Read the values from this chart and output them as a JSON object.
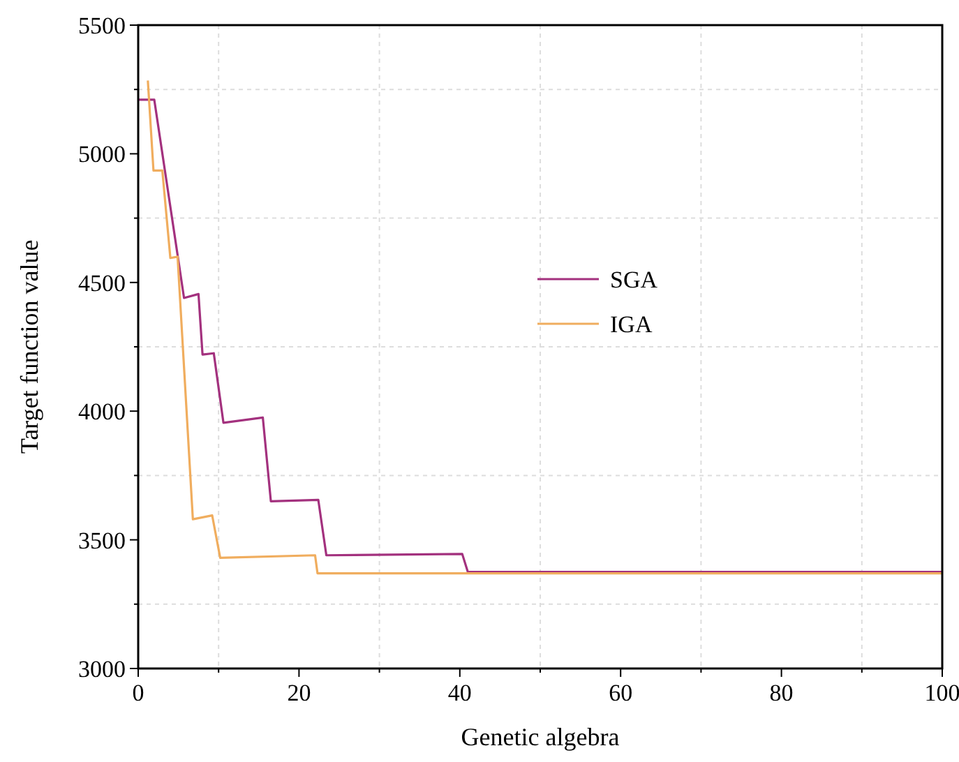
{
  "chart_data": {
    "type": "line",
    "xlabel": "Genetic algebra",
    "ylabel": "Target function value",
    "xlim": [
      0,
      100
    ],
    "ylim": [
      3000,
      5500
    ],
    "xticks": [
      0,
      {
        "value": 10,
        "label": null
      },
      20,
      {
        "value": 30,
        "label": null
      },
      40,
      {
        "value": 50,
        "label": null
      },
      60,
      {
        "value": 70,
        "label": null
      },
      80,
      {
        "value": 90,
        "label": null
      },
      100
    ],
    "yticks": [
      3000,
      {
        "value": 3250,
        "label": null
      },
      3500,
      {
        "value": 3750,
        "label": null
      },
      4000,
      {
        "value": 4250,
        "label": null
      },
      4500,
      {
        "value": 4750,
        "label": null
      },
      5000,
      {
        "value": 5250,
        "label": null
      },
      5500
    ],
    "grid": true,
    "legend": "right",
    "marker": "none",
    "line_style": "solid",
    "series": [
      {
        "name": "SGA",
        "color": "#a3317e",
        "x": [
          0,
          2,
          5.7,
          7.5,
          8,
          9.4,
          10.6,
          15.5,
          16.5,
          22.4,
          23.4,
          40.3,
          41,
          100
        ],
        "values": [
          5210,
          5210,
          4440,
          4455,
          4220,
          4225,
          3955,
          3975,
          3650,
          3655,
          3440,
          3445,
          3375,
          3375
        ]
      },
      {
        "name": "IGA",
        "color": "#f0ad5e",
        "x": [
          1.2,
          1.9,
          3,
          4,
          4.9,
          6.8,
          9.2,
          10.2,
          22,
          22.3,
          100
        ],
        "values": [
          5285,
          4935,
          4935,
          4595,
          4600,
          3580,
          3595,
          3430,
          3440,
          3370,
          3370
        ]
      }
    ]
  }
}
